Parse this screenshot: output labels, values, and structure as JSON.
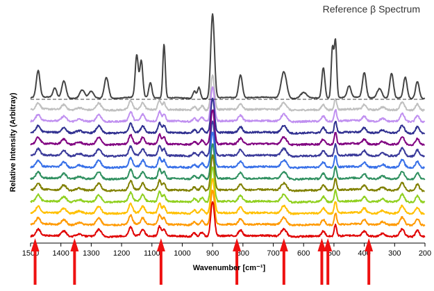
{
  "chart_data": {
    "type": "line",
    "title": "Reference β Spectrum",
    "xlabel": "Wavenumber [cm⁻¹]",
    "ylabel": "Relative Intensity (Arbitray)",
    "xlim": [
      1500,
      200
    ],
    "x_reversed": true,
    "x_ticks": [
      1500,
      1400,
      1300,
      1200,
      1100,
      1000,
      900,
      800,
      700,
      600,
      500,
      400,
      300,
      200
    ],
    "x_tick_labels": [
      "1500",
      "1400",
      "1300",
      "1200",
      "1100",
      "1000",
      "900",
      "800",
      "700",
      "600",
      "500",
      "400",
      "300",
      "200"
    ],
    "y_ticks_shown": false,
    "grid": false,
    "reference_baseline": "dashed",
    "reference_peaks_cm1": [
      1475,
      1390,
      1250,
      1150,
      1135,
      1105,
      1060,
      960,
      900,
      808,
      665,
      535,
      505,
      495,
      400,
      310,
      265,
      225
    ],
    "sample_peaks_cm1": [
      1475,
      1390,
      1275,
      1170,
      1130,
      1075,
      1060,
      960,
      900,
      808,
      665,
      535,
      495,
      400,
      275,
      225
    ],
    "series": [
      {
        "color": "#444444",
        "role": "reference"
      },
      {
        "color": "#c0c0c0"
      },
      {
        "color": "#c090f0"
      },
      {
        "color": "#303090"
      },
      {
        "color": "#800080"
      },
      {
        "color": "#3a3a9a"
      },
      {
        "color": "#3870e8"
      },
      {
        "color": "#309060"
      },
      {
        "color": "#808000"
      },
      {
        "color": "#90d020"
      },
      {
        "color": "#ffc000"
      },
      {
        "color": "#ff9a00"
      },
      {
        "color": "#e00000"
      }
    ],
    "highlighted_wavenumbers": [
      1485,
      1355,
      1070,
      820,
      665,
      540,
      520,
      385
    ],
    "arrow_color": "#ee1111"
  }
}
